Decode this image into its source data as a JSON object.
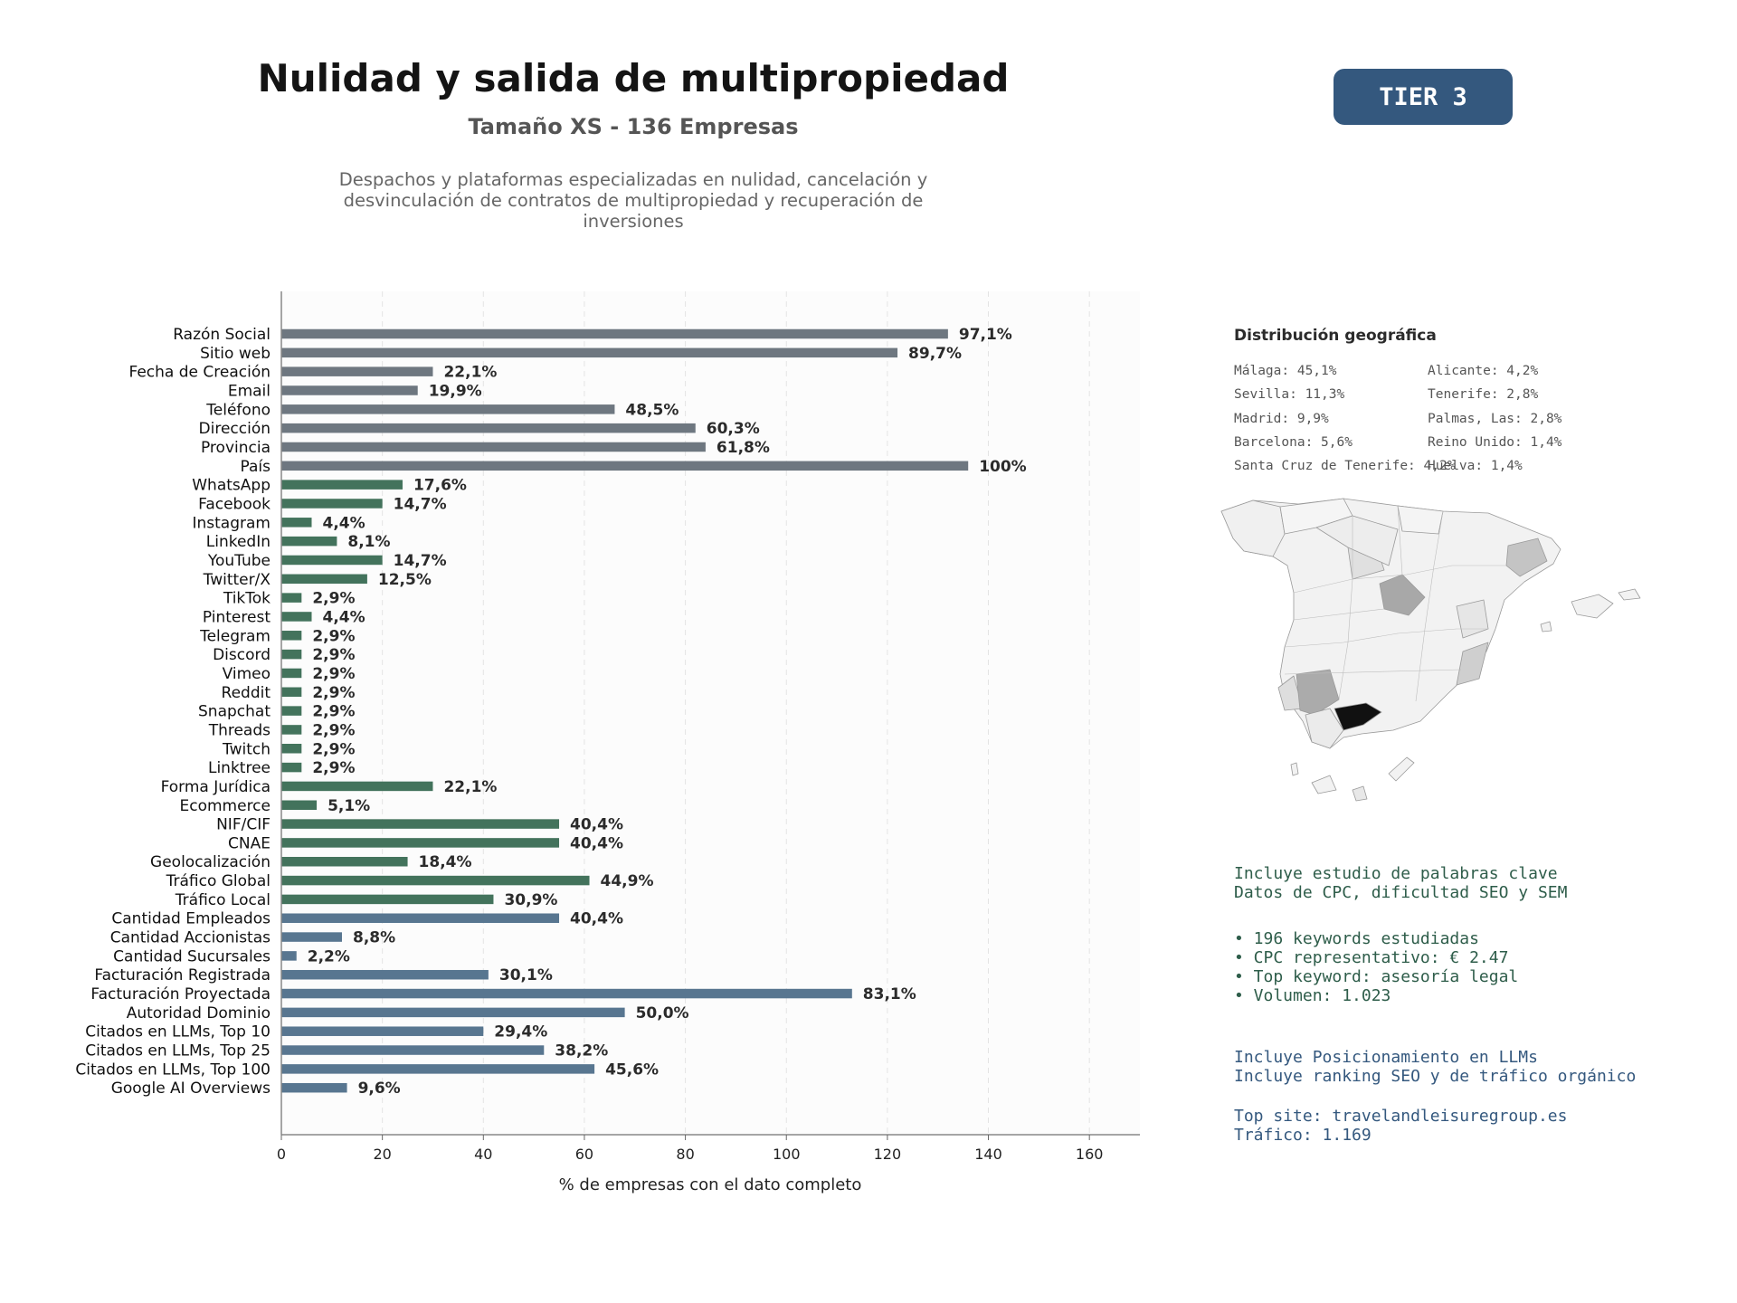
{
  "header": {
    "title": "Nulidad y salida de multipropiedad",
    "subtitle": "Tamaño XS - 136 Empresas",
    "description": "Despachos y plataformas especializadas en nulidad, cancelación y desvinculación de contratos de multipropiedad y recuperación de inversiones",
    "tier_badge": "TIER 3"
  },
  "colors": {
    "gray_bars": "#6e7780",
    "green_bars": "#43735c",
    "blue_bars": "#587690",
    "badge": "#34587e",
    "map_max": "#111111",
    "map_base": "#f2f2f2"
  },
  "chart_data": {
    "type": "bar",
    "orientation": "horizontal",
    "xlabel": "% de empresas con el dato completo",
    "xlim": [
      0,
      170
    ],
    "xticks": [
      0,
      20,
      40,
      60,
      80,
      100,
      120,
      140,
      160
    ],
    "grid": "vertical dashed",
    "categories": [
      "Razón Social",
      "Sitio web",
      "Fecha de Creación",
      "Email",
      "Teléfono",
      "Dirección",
      "Provincia",
      "País",
      "WhatsApp",
      "Facebook",
      "Instagram",
      "LinkedIn",
      "YouTube",
      "Twitter/X",
      "TikTok",
      "Pinterest",
      "Telegram",
      "Discord",
      "Vimeo",
      "Reddit",
      "Snapchat",
      "Threads",
      "Twitch",
      "Linktree",
      "Forma Jurídica",
      "Ecommerce",
      "NIF/CIF",
      "CNAE",
      "Geolocalización",
      "Tráfico Global",
      "Tráfico Local",
      "Cantidad Empleados",
      "Cantidad Accionistas",
      "Cantidad Sucursales",
      "Facturación Registrada",
      "Facturación Proyectada",
      "Autoridad Dominio",
      "Citados en LLMs, Top 10",
      "Citados en LLMs, Top 25",
      "Citados en LLMs, Top 100",
      "Google AI Overviews"
    ],
    "values": [
      132,
      122,
      30,
      27,
      66,
      82,
      84,
      136,
      24,
      20,
      6,
      11,
      20,
      17,
      4,
      6,
      4,
      4,
      4,
      4,
      4,
      4,
      4,
      4,
      30,
      7,
      55,
      55,
      25,
      61,
      42,
      55,
      12,
      3,
      41,
      113,
      68,
      40,
      52,
      62,
      13
    ],
    "labels": [
      "97,1%",
      "89,7%",
      "22,1%",
      "19,9%",
      "48,5%",
      "60,3%",
      "61,8%",
      "100%",
      "17,6%",
      "14,7%",
      "4,4%",
      "8,1%",
      "14,7%",
      "12,5%",
      "2,9%",
      "4,4%",
      "2,9%",
      "2,9%",
      "2,9%",
      "2,9%",
      "2,9%",
      "2,9%",
      "2,9%",
      "2,9%",
      "22,1%",
      "5,1%",
      "40,4%",
      "40,4%",
      "18,4%",
      "44,9%",
      "30,9%",
      "40,4%",
      "8,8%",
      "2,2%",
      "30,1%",
      "83,1%",
      "50,0%",
      "29,4%",
      "38,2%",
      "45,6%",
      "9,6%"
    ],
    "groups": [
      "gray",
      "gray",
      "gray",
      "gray",
      "gray",
      "gray",
      "gray",
      "gray",
      "green",
      "green",
      "green",
      "green",
      "green",
      "green",
      "green",
      "green",
      "green",
      "green",
      "green",
      "green",
      "green",
      "green",
      "green",
      "green",
      "green",
      "green",
      "green",
      "green",
      "green",
      "green",
      "green",
      "blue",
      "blue",
      "blue",
      "blue",
      "blue",
      "blue",
      "blue",
      "blue",
      "blue",
      "blue"
    ]
  },
  "geo": {
    "title": "Distribución geográfica",
    "left_column": [
      "Málaga: 45,1%",
      "Sevilla: 11,3%",
      "Madrid: 9,9%",
      "Barcelona: 5,6%",
      "Santa Cruz de Tenerife: 4,2%"
    ],
    "right_column": [
      "Alicante: 4,2%",
      "Tenerife: 2,8%",
      "Palmas, Las: 2,8%",
      "Reino Unido: 1,4%",
      "Huelva: 1,4%"
    ]
  },
  "keywords_block": {
    "line1": "Incluye estudio de palabras clave",
    "line2": "Datos de CPC, dificultad SEO y SEM",
    "bullets": [
      "• 196 keywords estudiadas",
      "• CPC representativo: € 2.47",
      "• Top keyword: asesoría legal",
      "• Volumen: 1.023"
    ]
  },
  "llm_block": {
    "line1": "Incluye Posicionamiento en LLMs",
    "line2": "Incluye ranking SEO y de tráfico orgánico",
    "top_site": "Top site: travelandleisuregroup.es",
    "traffic": "Tráfico: 1.169"
  }
}
